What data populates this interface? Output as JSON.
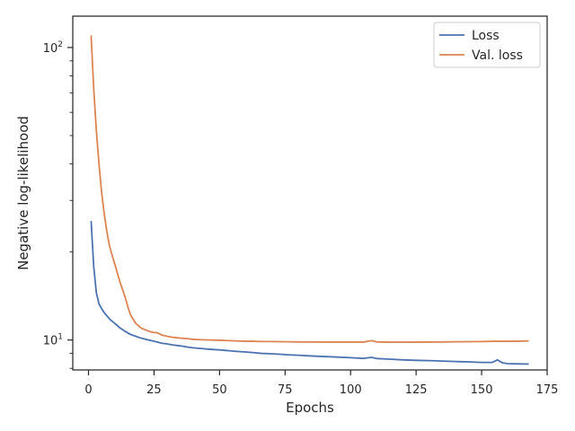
{
  "chart_data": {
    "type": "line",
    "title": "",
    "xlabel": "Epochs",
    "ylabel": "Negative log-likelihood",
    "y_scale": "log",
    "xlim": [
      -6,
      175
    ],
    "ylim": [
      7.9,
      128
    ],
    "xticks": [
      0,
      25,
      50,
      75,
      100,
      125,
      150,
      175
    ],
    "xtick_labels": [
      "0",
      "25",
      "50",
      "75",
      "100",
      "125",
      "150",
      "175"
    ],
    "yticks_major": [
      10,
      100
    ],
    "ytick_labels": [
      "10^1",
      "10^2"
    ],
    "grid": false,
    "legend_position": "top-right",
    "series": [
      {
        "name": "Loss",
        "color": "#4c72b0",
        "x": [
          1,
          2,
          3,
          4,
          5,
          6,
          7,
          8,
          9,
          10,
          12,
          14,
          16,
          18,
          20,
          22,
          24,
          26,
          28,
          30,
          32,
          35,
          38,
          40,
          43,
          46,
          50,
          53,
          56,
          60,
          63,
          66,
          70,
          73,
          76,
          80,
          85,
          90,
          95,
          100,
          105,
          108,
          110,
          115,
          120,
          125,
          130,
          135,
          140,
          145,
          150,
          154,
          156,
          158,
          160,
          163,
          166,
          168
        ],
        "values": [
          25.5,
          17.8,
          14.5,
          13.3,
          12.8,
          12.4,
          12.1,
          11.8,
          11.6,
          11.4,
          11.0,
          10.7,
          10.45,
          10.3,
          10.15,
          10.05,
          9.95,
          9.85,
          9.75,
          9.7,
          9.62,
          9.55,
          9.45,
          9.4,
          9.35,
          9.3,
          9.25,
          9.2,
          9.15,
          9.1,
          9.05,
          9.0,
          8.97,
          8.94,
          8.9,
          8.87,
          8.82,
          8.78,
          8.74,
          8.7,
          8.65,
          8.72,
          8.64,
          8.6,
          8.55,
          8.52,
          8.5,
          8.47,
          8.44,
          8.42,
          8.38,
          8.38,
          8.55,
          8.35,
          8.3,
          8.29,
          8.28,
          8.28
        ]
      },
      {
        "name": "Val. loss",
        "color": "#dd8452",
        "x": [
          1,
          2,
          3,
          4,
          5,
          6,
          7,
          8,
          9,
          10,
          12,
          14,
          15,
          16,
          18,
          20,
          22,
          24,
          25,
          26,
          28,
          30,
          32,
          35,
          38,
          40,
          43,
          46,
          50,
          53,
          56,
          60,
          63,
          66,
          70,
          73,
          76,
          80,
          85,
          90,
          95,
          100,
          105,
          108,
          110,
          115,
          120,
          125,
          130,
          135,
          140,
          145,
          150,
          155,
          160,
          163,
          166,
          168
        ],
        "values": [
          110,
          72,
          52,
          40,
          32,
          27,
          23.5,
          21,
          19.5,
          18.2,
          15.8,
          14,
          13,
          12.2,
          11.4,
          11.0,
          10.8,
          10.65,
          10.6,
          10.6,
          10.4,
          10.3,
          10.22,
          10.15,
          10.1,
          10.05,
          10.02,
          10.0,
          9.98,
          9.95,
          9.93,
          9.9,
          9.9,
          9.88,
          9.88,
          9.87,
          9.86,
          9.85,
          9.85,
          9.84,
          9.84,
          9.84,
          9.84,
          9.95,
          9.85,
          9.83,
          9.83,
          9.83,
          9.84,
          9.85,
          9.86,
          9.87,
          9.88,
          9.9,
          9.9,
          9.9,
          9.92,
          9.93
        ]
      }
    ]
  }
}
